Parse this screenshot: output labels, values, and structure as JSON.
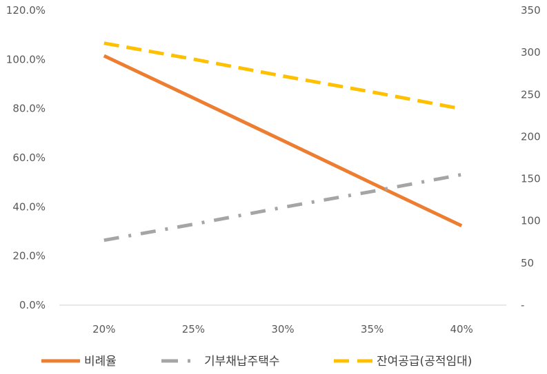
{
  "chart_data": {
    "type": "line",
    "x": [
      "20%",
      "25%",
      "30%",
      "35%",
      "40%"
    ],
    "y_left_ticks": [
      "0.0%",
      "20.0%",
      "40.0%",
      "60.0%",
      "80.0%",
      "100.0%",
      "120.0%"
    ],
    "y_right_ticks": [
      "-",
      "50",
      "100",
      "150",
      "200",
      "250",
      "300",
      "350"
    ],
    "ylim_left": [
      0,
      120
    ],
    "ylim_right": [
      0,
      350
    ],
    "grid": false,
    "legend_position": "bottom",
    "series": [
      {
        "name": "비례율",
        "axis": "left",
        "unit": "%",
        "values": [
          101.5,
          84.3,
          67.0,
          49.6,
          32.3
        ],
        "color": "#ED7D31",
        "style": "solid"
      },
      {
        "name": "기부채납주택수",
        "axis": "right",
        "values": [
          77,
          96,
          116,
          135,
          155
        ],
        "color": "#A5A5A5",
        "style": "dash-dot"
      },
      {
        "name": "잔여공급(공적임대)",
        "axis": "right",
        "values": [
          311,
          292,
          272,
          253,
          233
        ],
        "color": "#FFC000",
        "style": "dashed"
      }
    ]
  }
}
